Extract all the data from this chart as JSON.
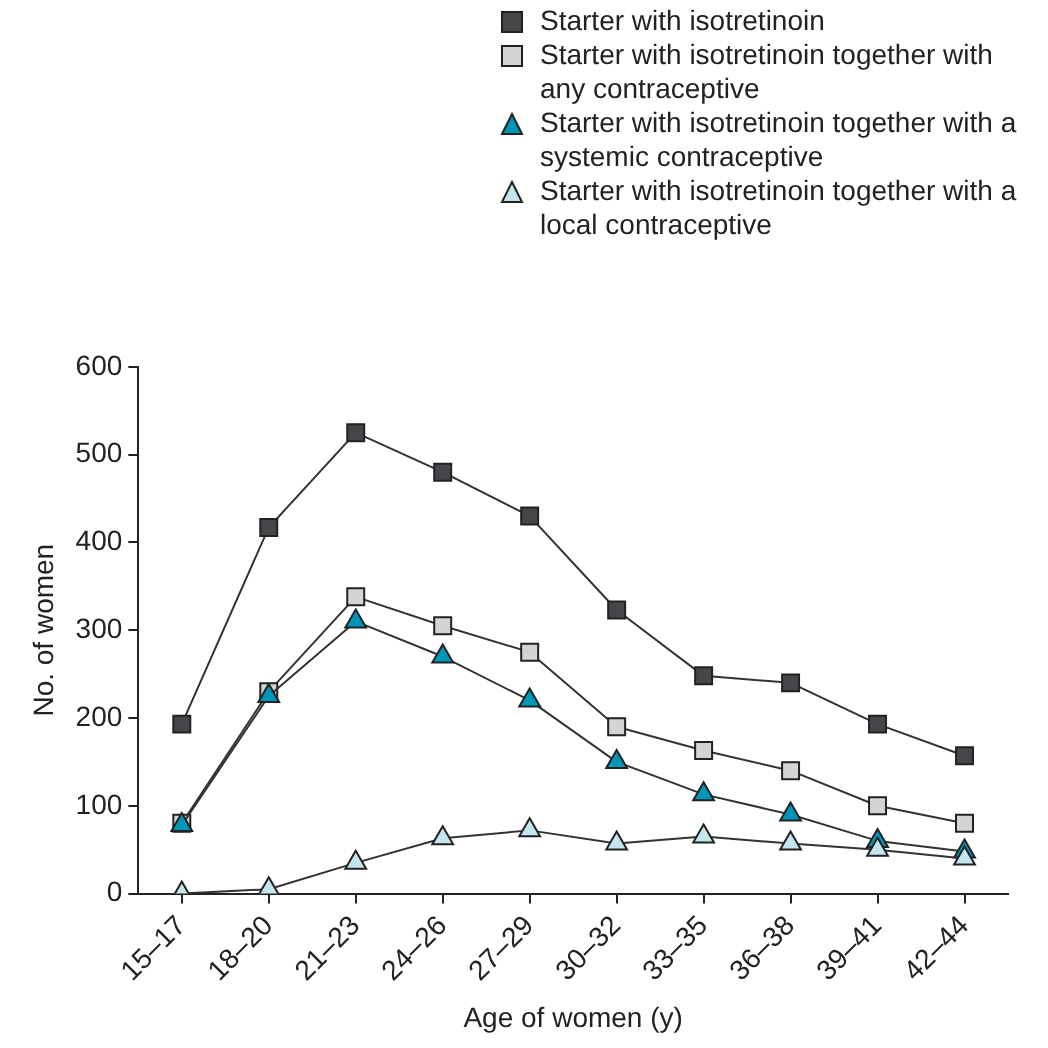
{
  "chart_data": {
    "type": "line",
    "xlabel": "Age of women (y)",
    "ylabel": "No. of women",
    "categories": [
      "15–17",
      "18–20",
      "21–23",
      "24–26",
      "27–29",
      "30–32",
      "33–35",
      "36–38",
      "39–41",
      "42–44"
    ],
    "series": [
      {
        "name": "Starter with isotretinoin",
        "color": "#46464a",
        "marker": "square",
        "values": [
          193,
          417,
          525,
          480,
          430,
          323,
          248,
          240,
          193,
          157
        ]
      },
      {
        "name": "Starter with isotretinoin together with any contraceptive",
        "color": "#d4d4d4",
        "marker": "square",
        "values": [
          80,
          230,
          338,
          305,
          275,
          190,
          163,
          140,
          100,
          80
        ]
      },
      {
        "name": "Starter with isotretinoin together with a systemic contraceptive",
        "color": "#0096b8",
        "marker": "triangle",
        "values": [
          78,
          225,
          310,
          270,
          220,
          150,
          113,
          90,
          60,
          48
        ]
      },
      {
        "name": "Starter with isotretinoin together with a local contraceptive",
        "color": "#c4e4ee",
        "marker": "triangle",
        "values": [
          0,
          5,
          35,
          63,
          72,
          57,
          65,
          57,
          50,
          40
        ]
      }
    ],
    "ylim": [
      0,
      600
    ],
    "yticks": [
      0,
      100,
      200,
      300,
      400,
      500,
      600
    ],
    "grid": false,
    "legend": "top right",
    "line_style": "solid"
  }
}
